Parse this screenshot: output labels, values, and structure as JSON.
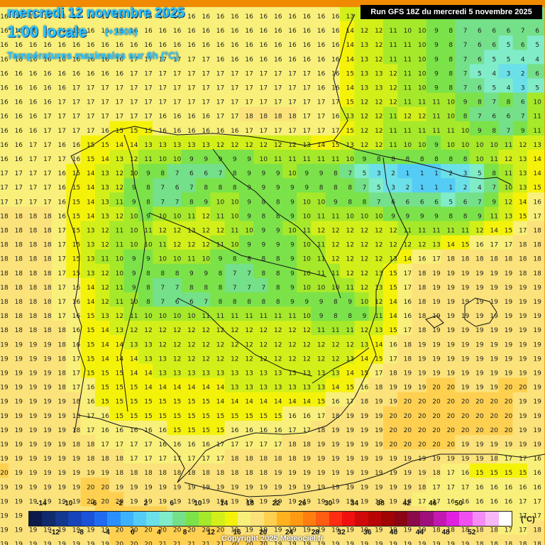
{
  "header": {
    "date": "mercredi 12 novembre 2025",
    "hour": "1:00 locale",
    "lead": "(+150h)",
    "parameter": "Températures maximales sur 6h (°C)",
    "run": "Run GFS 18Z du mercredi 5 novembre 2025"
  },
  "legend": {
    "unit": "(°C)",
    "top_labels": [
      "-14",
      "-10",
      "-6",
      "-2",
      "2",
      "6",
      "10",
      "14",
      "18",
      "22",
      "26",
      "30",
      "34",
      "38",
      "42",
      "46",
      "50"
    ],
    "bottom_labels": [
      "-12",
      "-8",
      "-4",
      "0",
      "4",
      "8",
      "12",
      "16",
      "20",
      "24",
      "28",
      "32",
      "36",
      "40",
      "44",
      "48",
      "52"
    ],
    "colors": [
      "#0b1a4a",
      "#112a6e",
      "#13388f",
      "#1744b8",
      "#1c52d8",
      "#1f6cf0",
      "#2a90ff",
      "#3fb2ff",
      "#55ccf5",
      "#6ce0e8",
      "#80ecc8",
      "#75e08a",
      "#7be24a",
      "#a6e82a",
      "#d3ef1a",
      "#f5f20a",
      "#f8f07a",
      "#fbe27a",
      "#ffd050",
      "#ffb21e",
      "#ff9a12",
      "#ff7e10",
      "#ff5c14",
      "#ff2e12",
      "#f01010",
      "#d00a0a",
      "#b80606",
      "#a00404",
      "#8a0414",
      "#8a0a4a",
      "#a0107c",
      "#c21ab0",
      "#e022e0",
      "#f050f0",
      "#f58cf5",
      "#f8b8f8",
      "#ffffff"
    ]
  },
  "copyright": "Copyright 2025 Meteociel.fr",
  "grid": {
    "rows": [
      "16 16 16 16 16 16 16 16 16 16 16 16 16 16 16 16 16 16 16 16 16 16 16 16 13 12 12 11 11 10 9 8 7 6 6 6 7 6",
      "16 16 16 16 16 16 16 16 16 16 16 16 16 16 16 16 16 16 16 16 16 16 16 16 14 12 12 11 10 10 9 8 7 6 6 6 7 6",
      "16 16 16 16 16 16 16 16 16 16 16 16 16 16 16 16 16 16 16 16 16 16 16 16 14 13 12 11 11 10 9 8 7 6 6 5 6 5",
      "16 16 16 16 16 16 16 16 16 17 17 17 17 17 17 16 16 16 16 16 16 16 16 16 14 13 12 11 11 10 9 8 7 6 5 5 4 4",
      "16 16 16 16 16 16 16 16 16 17 17 17 17 17 17 17 17 17 17 17 17 17 16 16 15 13 13 12 11 10 9 8 7 5 4 3 2 6",
      "16 16 16 16 16 17 17 17 17 17 17 17 17 17 17 17 17 17 17 17 17 17 16 16 14 13 13 12 11 10 9 8 7 6 5 4 3 5",
      "16 16 16 16 17 17 17 17 17 17 17 17 17 17 17 17 17 17 17 17 17 17 17 17 15 12 12 12 11 11 11 10 9 8 7 8 6 10",
      "16 16 16 17 17 17 17 17 17 17 17 16 16 16 16 17 17 18 18 18 18 17 17 16 13 12 12 11 12 12 11 10 8 7 6 6 7 11",
      "16 16 16 17 17 17 17 16 15 15 15 16 16 16 16 16 16 17 17 17 17 17 17 17 15 12 12 11 11 11 11 11 10 9 8 7 9 11",
      "16 16 17 17 16 16 15 15 14 14 13 13 13 13 13 12 12 12 12 12 12 13 14 15 13 12 12 11 10 10 9 10 10 10 10 11 12 13",
      "16 16 17 17 17 16 15 14 13 12 11 10 10 9 9 9 9 9 10 11 11 11 11 11 10 9 8 8 8 8 8 8 8 10 11 12 13 14",
      "17 17 17 17 16 15 14 13 12 10 9 8 7 6 6 7 8 9 9 9 10 9 9 8 7 5 3 2 1 1 1 2 3 5 8 11 13 14",
      "17 17 17 17 16 15 14 13 12 9 8 7 6 7 8 8 8 9 9 9 9 9 8 8 8 7 5 3 2 1 1 1 2 4 7 10 13 15",
      "17 17 17 17 16 15 14 13 11 9 8 7 7 8 9 10 10 9 8 8 9 10 10 9 8 8 7 6 6 6 6 5 6 7 9 12 14 16",
      "18 18 18 18 16 15 14 13 12 10 9 10 10 11 12 11 10 9 8 8 9 10 11 11 10 10 10 9 9 9 9 8 8 9 11 13 15 17",
      "18 18 18 18 17 15 13 12 11 10 11 12 12 13 12 12 11 10 9 9 10 11 12 12 12 12 12 12 11 11 11 11 11 12 14 15 17 18",
      "18 18 18 18 17 15 13 12 11 10 10 11 12 12 12 11 10 9 9 9 9 10 11 12 12 12 12 12 12 12 13 14 15 16 17 17 18 18",
      "18 18 18 18 17 15 13 11 10 9 9 10 10 11 10 9 8 8 8 8 9 10 11 12 12 12 12 13 14 16 17 18 18 18 18 18 18 18",
      "18 18 18 18 17 15 13 12 10 9 8 8 8 9 9 8 7 7 8 8 9 10 11 11 12 12 13 15 17 18 19 19 19 19 19 19 18 18",
      "18 18 18 18 17 16 14 12 11 9 8 7 7 8 8 8 7 7 7 8 9 10 10 10 11 12 13 15 17 18 19 19 19 19 19 19 19 19",
      "18 18 18 18 17 16 14 12 11 10 8 7 6 6 7 8 8 8 8 8 9 9 9 8 9 10 12 14 16 18 19 19 19 19 19 19 19 19",
      "18 18 18 18 17 16 15 13 12 11 10 10 10 10 11 11 11 11 11 11 11 10 9 8 8 9 11 14 16 18 19 19 19 19 19 19 19 19",
      "18 18 18 18 18 16 15 14 13 12 12 12 12 12 12 12 12 12 12 12 12 12 11 11 11 12 13 15 17 18 19 19 19 19 19 19 19 19",
      "19 19 19 19 18 16 15 14 14 13 13 12 12 12 12 12 12 12 12 12 12 12 12 12 12 13 14 16 18 19 19 19 19 19 19 19 19 19",
      "19 19 19 19 18 17 15 14 14 14 13 13 12 12 12 12 12 12 12 12 12 12 12 12 13 14 15 17 18 19 19 19 19 19 19 19 19 19",
      "19 19 19 19 18 17 15 15 15 14 14 13 13 13 13 13 13 13 13 13 13 13 13 13 14 15 17 18 19 19 19 19 19 19 19 19 19 19",
      "19 19 19 19 18 17 16 15 15 15 14 14 14 14 14 14 13 13 13 13 13 13 13 14 15 16 18 19 19 19 20 20 19 19 19 20 20 19",
      "19 19 19 19 19 18 16 15 15 15 15 15 15 15 15 14 14 14 14 14 14 14 15 16 17 18 19 19 20 20 20 20 20 20 20 20 19 19",
      "19 19 19 19 19 18 17 16 15 15 15 15 15 15 15 15 15 15 15 15 16 16 17 18 19 19 19 20 20 20 20 20 20 20 20 20 19 19",
      "19 19 19 19 19 18 17 16 16 16 16 16 15 15 15 15 16 16 16 16 17 17 18 19 19 19 19 20 20 20 20 20 20 20 20 20 19 19",
      "19 19 19 19 19 18 18 17 17 17 17 16 16 16 16 17 17 17 17 17 18 18 19 19 19 19 19 20 20 20 20 20 19 19 19 19 19 19",
      "19 19 19 19 19 19 18 18 18 17 17 17 17 17 17 17 18 18 18 18 18 19 19 19 19 19 19 19 19 19 19 19 19 19 18 17 17 16",
      "20 19 19 19 19 19 19 19 18 18 18 18 18 18 18 18 18 18 18 19 19 19 19 19 19 19 19 19 19 19 18 17 16 15 15 15 15 16",
      "19 19 19 19 19 19 20 20 19 19 19 19 19 19 19 19 19 19 19 19 19 19 19 19 19 19 19 19 19 18 17 17 17 16 16 16 16 16",
      "19 19 19 19 19 19 20 20 20 19 19 19 19 19 19 19 19 19 19 19 19 19 19 19 19 19 19 19 18 17 17 16 16 16 16 16 17 17",
      "19 19 19 19 19 19 19 20 20 20 20 20 19 19 19 19 19 19 19 19 19 19 19 19 19 19 19 19 19 18 17 17 17 16 17 17 17 17",
      "19 19 19 19 19 19 19 19 20 20 20 20 20 20 20 20 19 19 19 19 19 19 19 19 19 19 19 19 19 19 18 18 18 18 18 17 17 18",
      "19 19 19 19 19 19 19 19 20 20 20 21 21 21 21 21 20 20 20 19 19 19 19 19 19 19 19 19 19 19 19 19 19 18 18 18 18 18"
    ]
  }
}
